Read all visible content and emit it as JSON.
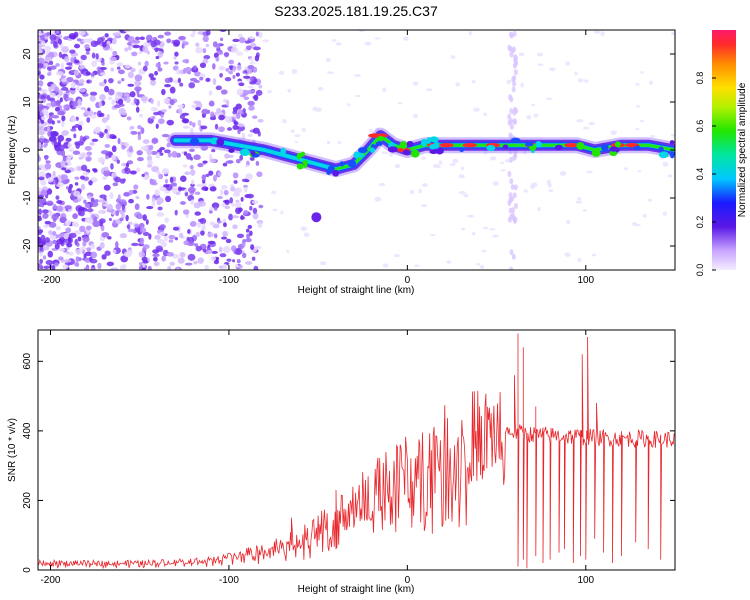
{
  "title": "S233.2025.181.19.25.C37",
  "chart_data": [
    {
      "type": "heatmap",
      "xlabel": "Height of straight line (km)",
      "ylabel": "Frequency (Hz)",
      "xlim": [
        -207,
        150
      ],
      "ylim": [
        -25,
        25
      ],
      "xticks": [
        "-200",
        "-100",
        "0",
        "100"
      ],
      "yticks": [
        "20",
        "10",
        "0",
        "-10",
        "-20"
      ],
      "colorbar": {
        "label": "Normalized spectral amplitude",
        "range": [
          0,
          1
        ],
        "ticks": [
          "0.0",
          "0.2",
          "0.4",
          "0.6",
          "0.8"
        ]
      },
      "ridge": [
        {
          "x": -130,
          "f": 2
        },
        {
          "x": -110,
          "f": 2
        },
        {
          "x": -95,
          "f": 1
        },
        {
          "x": -80,
          "f": 0
        },
        {
          "x": -70,
          "f": -1
        },
        {
          "x": -60,
          "f": -2
        },
        {
          "x": -50,
          "f": -3
        },
        {
          "x": -40,
          "f": -4
        },
        {
          "x": -30,
          "f": -3
        },
        {
          "x": -22,
          "f": 0
        },
        {
          "x": -15,
          "f": 3
        },
        {
          "x": -8,
          "f": 1
        },
        {
          "x": 0,
          "f": 0
        },
        {
          "x": 10,
          "f": 1
        },
        {
          "x": 20,
          "f": 1
        },
        {
          "x": 40,
          "f": 1
        },
        {
          "x": 55,
          "f": 1
        },
        {
          "x": 65,
          "f": 1
        },
        {
          "x": 80,
          "f": 1
        },
        {
          "x": 95,
          "f": 1
        },
        {
          "x": 105,
          "f": 0
        },
        {
          "x": 120,
          "f": 1
        },
        {
          "x": 135,
          "f": 1
        },
        {
          "x": 150,
          "f": 0
        }
      ]
    },
    {
      "type": "line",
      "xlabel": "Height of straight line (km)",
      "ylabel": "SNR (10 * v/v)",
      "xlim": [
        -207,
        150
      ],
      "ylim": [
        0,
        690
      ],
      "xticks": [
        "-200",
        "-100",
        "0",
        "100"
      ],
      "yticks": [
        "0",
        "200",
        "400",
        "600"
      ],
      "color": "#e8262b",
      "envelope": [
        {
          "x": -207,
          "y": 20
        },
        {
          "x": -150,
          "y": 20
        },
        {
          "x": -110,
          "y": 30
        },
        {
          "x": -80,
          "y": 60
        },
        {
          "x": -60,
          "y": 90
        },
        {
          "x": -40,
          "y": 150
        },
        {
          "x": -20,
          "y": 230
        },
        {
          "x": 0,
          "y": 290
        },
        {
          "x": 20,
          "y": 350
        },
        {
          "x": 40,
          "y": 390
        },
        {
          "x": 55,
          "y": 400
        },
        {
          "x": 70,
          "y": 390
        },
        {
          "x": 90,
          "y": 385
        },
        {
          "x": 110,
          "y": 380
        },
        {
          "x": 150,
          "y": 375
        }
      ],
      "spikes": [
        {
          "x": -65,
          "y": 150
        },
        {
          "x": -40,
          "y": 230
        },
        {
          "x": -25,
          "y": 280
        },
        {
          "x": 60,
          "y": 560
        },
        {
          "x": 62,
          "y": 680
        },
        {
          "x": 65,
          "y": 640
        },
        {
          "x": 72,
          "y": 470
        },
        {
          "x": 98,
          "y": 620
        },
        {
          "x": 101,
          "y": 670
        },
        {
          "x": 106,
          "y": 480
        }
      ],
      "dropouts": [
        {
          "x": 62,
          "y": 10
        },
        {
          "x": 65,
          "y": 30
        },
        {
          "x": 67,
          "y": 5
        },
        {
          "x": 72,
          "y": 40
        },
        {
          "x": 76,
          "y": 20
        },
        {
          "x": 80,
          "y": 30
        },
        {
          "x": 85,
          "y": 50
        },
        {
          "x": 88,
          "y": 60
        },
        {
          "x": 93,
          "y": 20
        },
        {
          "x": 97,
          "y": 40
        },
        {
          "x": 100,
          "y": 30
        },
        {
          "x": 105,
          "y": 90
        },
        {
          "x": 110,
          "y": 50
        },
        {
          "x": 115,
          "y": 20
        },
        {
          "x": 120,
          "y": 40
        },
        {
          "x": 128,
          "y": 80
        },
        {
          "x": 135,
          "y": 60
        },
        {
          "x": 142,
          "y": 30
        }
      ]
    }
  ]
}
